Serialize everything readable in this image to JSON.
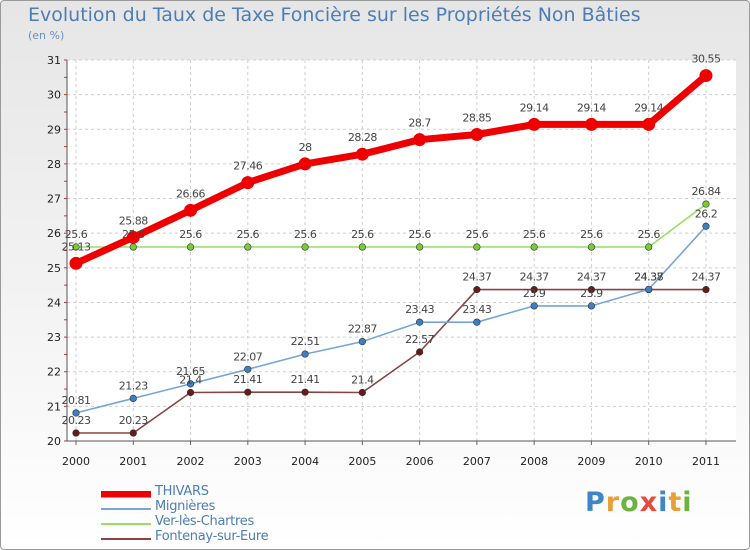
{
  "header": {
    "title": "Evolution du Taux de Taxe Foncière sur les Propriétés Non Bâties",
    "unit": "(en %)"
  },
  "brand": {
    "letters": [
      "P",
      "r",
      "o",
      "x",
      "i",
      "t",
      "i"
    ],
    "colors": [
      "#3e86c9",
      "#e8a03a",
      "#6db33f",
      "#e64a3b",
      "#3e86c9",
      "#e8a03a",
      "#6db33f"
    ]
  },
  "chart_data": {
    "type": "line",
    "title": "Evolution du Taux de Taxe Foncière sur les Propriétés Non Bâties",
    "ylabel": "(en %)",
    "xlabel": "",
    "x": [
      "2000",
      "2001",
      "2002",
      "2003",
      "2004",
      "2005",
      "2006",
      "2007",
      "2008",
      "2009",
      "2010",
      "2011"
    ],
    "ylim": [
      20,
      31
    ],
    "yticks": [
      "20",
      "21",
      "22",
      "23",
      "24",
      "25",
      "26",
      "27",
      "28",
      "29",
      "30",
      "31"
    ],
    "grid": true,
    "series": [
      {
        "name": "THIVARS",
        "color": "#ee0000",
        "dot_color": "#ee0000",
        "values": [
          25.13,
          25.88,
          26.66,
          27.46,
          28,
          28.28,
          28.7,
          28.85,
          29.14,
          29.14,
          29.14,
          30.55
        ],
        "labels": [
          "25.13",
          "25.88",
          "26.66",
          "27.46",
          "28",
          "28.28",
          "28.7",
          "28.85",
          "29.14",
          "29.14",
          "29.14",
          "30.55"
        ]
      },
      {
        "name": "Mignières",
        "color": "#77a6d6",
        "dot_color": "#3e7fc1",
        "values": [
          20.81,
          21.23,
          21.65,
          22.07,
          22.51,
          22.87,
          23.43,
          23.43,
          23.9,
          23.9,
          24.38,
          26.2
        ],
        "labels": [
          "20.81",
          "21.23",
          "21.65",
          "22.07",
          "22.51",
          "22.87",
          "23.43",
          "23.43",
          "23.9",
          "23.9",
          "24.38",
          "26.2"
        ]
      },
      {
        "name": "Ver-lès-Chartres",
        "color": "#99dd66",
        "dot_color": "#77cc33",
        "values": [
          25.6,
          25.6,
          25.6,
          25.6,
          25.6,
          25.6,
          25.6,
          25.6,
          25.6,
          25.6,
          25.6,
          26.84
        ],
        "labels": [
          "25.6",
          "25.6",
          "25.6",
          "25.6",
          "25.6",
          "25.6",
          "25.6",
          "25.6",
          "25.6",
          "25.6",
          "25.6",
          "26.84"
        ]
      },
      {
        "name": "Fontenay-sur-Eure",
        "color": "#884444",
        "dot_color": "#661a1a",
        "values": [
          20.23,
          20.23,
          21.4,
          21.41,
          21.41,
          21.4,
          22.57,
          24.37,
          24.37,
          24.37,
          24.37,
          24.37
        ],
        "labels": [
          "20.23",
          "20.23",
          "21.4",
          "21.41",
          "21.41",
          "21.4",
          "22.57",
          "24.37",
          "24.37",
          "24.37",
          "24.37",
          "24.37"
        ]
      }
    ]
  }
}
